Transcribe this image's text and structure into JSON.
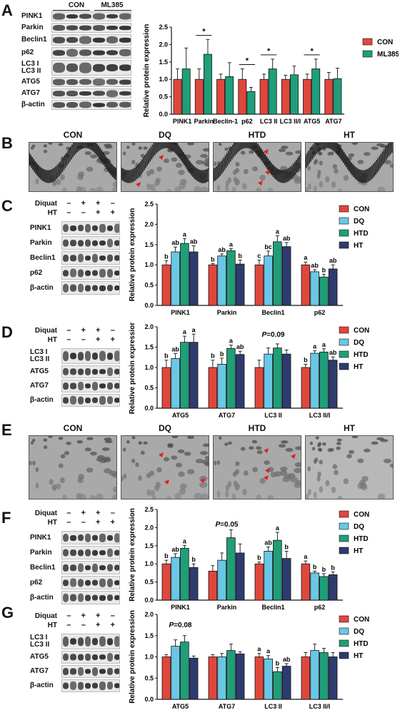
{
  "panels": {
    "A": {
      "label": "A",
      "groups": [
        "CON",
        "ML385"
      ],
      "blot_rows": [
        "PINK1",
        "Parkin",
        "Beclin1",
        "p62",
        "LC3 I",
        "LC3 II",
        "ATG5",
        "ATG7",
        "β-actin"
      ],
      "chart_data": {
        "type": "bar",
        "categories": [
          "PINK1",
          "Parkin",
          "Beclin-1",
          "p62",
          "LC3 II",
          "LC3 II/I",
          "ATG5",
          "ATG7"
        ],
        "series": [
          {
            "name": "CON",
            "color": "#e0473c",
            "values": [
              1.0,
              1.0,
              1.0,
              1.0,
              1.0,
              1.0,
              1.0,
              1.0
            ],
            "errors": [
              0.3,
              0.3,
              0.15,
              0.3,
              0.15,
              0.12,
              0.15,
              0.2
            ]
          },
          {
            "name": "ML385",
            "color": "#1f9e7a",
            "values": [
              1.3,
              1.72,
              1.08,
              0.65,
              1.3,
              1.13,
              1.3,
              1.02
            ],
            "errors": [
              0.6,
              0.42,
              0.4,
              0.12,
              0.28,
              0.25,
              0.28,
              0.3
            ]
          }
        ],
        "ylabel": "Relative protein expression",
        "yticks": [
          "0.0",
          "0.5",
          "1.0",
          "1.5",
          "2.0",
          "2.5"
        ],
        "ylim": [
          0,
          2.5
        ],
        "significance": [
          "",
          "*",
          "",
          "*",
          "*",
          "",
          "*",
          ""
        ],
        "legend": "right"
      }
    },
    "B": {
      "label": "B",
      "titles": [
        "CON",
        "DQ",
        "HTD",
        "HT"
      ]
    },
    "C": {
      "label": "C",
      "treatment_labels": [
        "Diquat",
        "HT"
      ],
      "treatment_signs": [
        [
          "–",
          "+",
          "+",
          "–"
        ],
        [
          "–",
          "–",
          "+",
          "+"
        ]
      ],
      "blot_rows": [
        "PINK1",
        "Parkin",
        "Beclin1",
        "p62",
        "β-actin"
      ],
      "chart_data": {
        "type": "bar",
        "categories": [
          "PINK1",
          "Parkin",
          "Beclin1",
          "p62"
        ],
        "series": [
          {
            "name": "CON",
            "color": "#e0473c",
            "values": [
              1.0,
              1.0,
              1.0,
              1.0
            ],
            "errors": [
              0.1,
              0.03,
              0.12,
              0.07
            ]
          },
          {
            "name": "DQ",
            "color": "#69c8e6",
            "values": [
              1.32,
              1.22,
              1.22,
              0.83
            ],
            "errors": [
              0.12,
              0.05,
              0.12,
              0.05
            ]
          },
          {
            "name": "HTD",
            "color": "#1f9e7a",
            "values": [
              1.53,
              1.35,
              1.57,
              0.7
            ],
            "errors": [
              0.12,
              0.05,
              0.15,
              0.07
            ]
          },
          {
            "name": "HT",
            "color": "#2e3b6e",
            "values": [
              1.32,
              1.02,
              1.45,
              0.9
            ],
            "errors": [
              0.15,
              0.1,
              0.1,
              0.1
            ]
          }
        ],
        "ylabel": "Relative protein expression",
        "yticks": [
          "0.0",
          "0.5",
          "1.0",
          "1.5",
          "2.0",
          "2.5"
        ],
        "ylim": [
          0,
          2.5
        ],
        "letters": [
          [
            "b",
            "ab",
            "a",
            "ab"
          ],
          [
            "b",
            "ab",
            "a",
            "b"
          ],
          [
            "c",
            "bc",
            "a",
            "ab"
          ],
          [
            "a",
            "ab",
            "b",
            "ab"
          ]
        ],
        "legend": "right"
      }
    },
    "D": {
      "label": "D",
      "treatment_labels": [
        "Diquat",
        "HT"
      ],
      "treatment_signs": [
        [
          "–",
          "+",
          "+",
          "–"
        ],
        [
          "–",
          "–",
          "+",
          "+"
        ]
      ],
      "blot_rows": [
        "LC3 I",
        "LC3 II",
        "ATG5",
        "ATG7",
        "β-actin"
      ],
      "chart_data": {
        "type": "bar",
        "categories": [
          "ATG5",
          "ATG7",
          "LC3 II",
          "LC3 II/I"
        ],
        "series": [
          {
            "name": "CON",
            "color": "#e0473c",
            "values": [
              1.0,
              1.0,
              1.0,
              1.0
            ],
            "errors": [
              0.18,
              0.18,
              0.18,
              0.08
            ]
          },
          {
            "name": "DQ",
            "color": "#69c8e6",
            "values": [
              1.22,
              1.08,
              1.33,
              1.35
            ],
            "errors": [
              0.12,
              0.15,
              0.15,
              0.06
            ]
          },
          {
            "name": "HTD",
            "color": "#1f9e7a",
            "values": [
              1.62,
              1.47,
              1.48,
              1.38
            ],
            "errors": [
              0.15,
              0.08,
              0.1,
              0.08
            ]
          },
          {
            "name": "HT",
            "color": "#2e3b6e",
            "values": [
              1.62,
              1.32,
              1.33,
              1.18
            ],
            "errors": [
              0.2,
              0.08,
              0.1,
              0.08
            ]
          }
        ],
        "ylabel": "Relative protein expression",
        "yticks": [
          "0.0",
          "0.5",
          "1.0",
          "1.5",
          "2.0"
        ],
        "ylim": [
          0,
          2.0
        ],
        "letters": [
          [
            "b",
            "ab",
            "a",
            "a"
          ],
          [
            "b",
            "b",
            "a",
            "ab"
          ],
          [
            "",
            "",
            "",
            ""
          ],
          [
            "b",
            "a",
            "a",
            "ab"
          ]
        ],
        "annotation": "P=0.09",
        "legend": "right"
      }
    },
    "E": {
      "label": "E",
      "titles": [
        "CON",
        "DQ",
        "HTD",
        "HT"
      ]
    },
    "F": {
      "label": "F",
      "treatment_labels": [
        "Diquat",
        "HT"
      ],
      "treatment_signs": [
        [
          "–",
          "+",
          "+",
          "–"
        ],
        [
          "–",
          "–",
          "+",
          "+"
        ]
      ],
      "blot_rows": [
        "PINK1",
        "Parkin",
        "Beclin1",
        "p62",
        "β-actin"
      ],
      "chart_data": {
        "type": "bar",
        "categories": [
          "PINK1",
          "Parkin",
          "Beclin1",
          "p62"
        ],
        "series": [
          {
            "name": "CON",
            "color": "#e0473c",
            "values": [
              1.0,
              0.8,
              1.0,
              1.0
            ],
            "errors": [
              0.1,
              0.15,
              0.05,
              0.08
            ]
          },
          {
            "name": "DQ",
            "color": "#69c8e6",
            "values": [
              1.18,
              1.1,
              1.35,
              0.75
            ],
            "errors": [
              0.1,
              0.2,
              0.12,
              0.05
            ]
          },
          {
            "name": "HTD",
            "color": "#1f9e7a",
            "values": [
              1.43,
              1.72,
              1.65,
              0.65
            ],
            "errors": [
              0.08,
              0.22,
              0.22,
              0.08
            ]
          },
          {
            "name": "HT",
            "color": "#2e3b6e",
            "values": [
              0.9,
              1.3,
              1.15,
              0.7
            ],
            "errors": [
              0.1,
              0.25,
              0.2,
              0.08
            ]
          }
        ],
        "ylabel": "Relative protein expression",
        "yticks": [
          "0.0",
          "0.5",
          "1.0",
          "1.5",
          "2.0",
          "2.5"
        ],
        "ylim": [
          0,
          2.5
        ],
        "letters": [
          [
            "b",
            "ab",
            "a",
            "b"
          ],
          [
            "",
            "",
            "",
            ""
          ],
          [
            "b",
            "ab",
            "a",
            "b"
          ],
          [
            "a",
            "b",
            "b",
            "b"
          ]
        ],
        "annotation": "P=0.05",
        "legend": "right"
      }
    },
    "G": {
      "label": "G",
      "treatment_labels": [
        "Diquat",
        "HT"
      ],
      "treatment_signs": [
        [
          "–",
          "+",
          "+",
          "–"
        ],
        [
          "–",
          "–",
          "+",
          "+"
        ]
      ],
      "blot_rows": [
        "LC3 I",
        "LC3 II",
        "ATG5",
        "ATG7",
        "β-actin"
      ],
      "chart_data": {
        "type": "bar",
        "categories": [
          "ATG5",
          "ATG7",
          "LC3 II",
          "LC3 II/I"
        ],
        "series": [
          {
            "name": "CON",
            "color": "#e0473c",
            "values": [
              1.0,
              1.0,
              1.0,
              1.0
            ],
            "errors": [
              0.05,
              0.05,
              0.08,
              0.1
            ]
          },
          {
            "name": "DQ",
            "color": "#69c8e6",
            "values": [
              1.25,
              1.0,
              0.95,
              1.15
            ],
            "errors": [
              0.15,
              0.08,
              0.08,
              0.15
            ]
          },
          {
            "name": "HTD",
            "color": "#1f9e7a",
            "values": [
              1.35,
              1.15,
              0.65,
              1.1
            ],
            "errors": [
              0.15,
              0.15,
              0.1,
              0.1
            ]
          },
          {
            "name": "HT",
            "color": "#2e3b6e",
            "values": [
              0.97,
              1.07,
              0.78,
              1.0
            ],
            "errors": [
              0.05,
              0.05,
              0.06,
              0.1
            ]
          }
        ],
        "ylabel": "Relative protein expression",
        "yticks": [
          "0.0",
          "0.5",
          "1.0",
          "1.5",
          "2.0"
        ],
        "ylim": [
          0,
          2.0
        ],
        "letters": [
          [
            "",
            "",
            "",
            ""
          ],
          [
            "",
            "",
            "",
            ""
          ],
          [
            "a",
            "a",
            "b",
            "ab"
          ],
          [
            "",
            "",
            "",
            ""
          ]
        ],
        "annotation": "P=0.08",
        "legend": "right"
      }
    }
  }
}
